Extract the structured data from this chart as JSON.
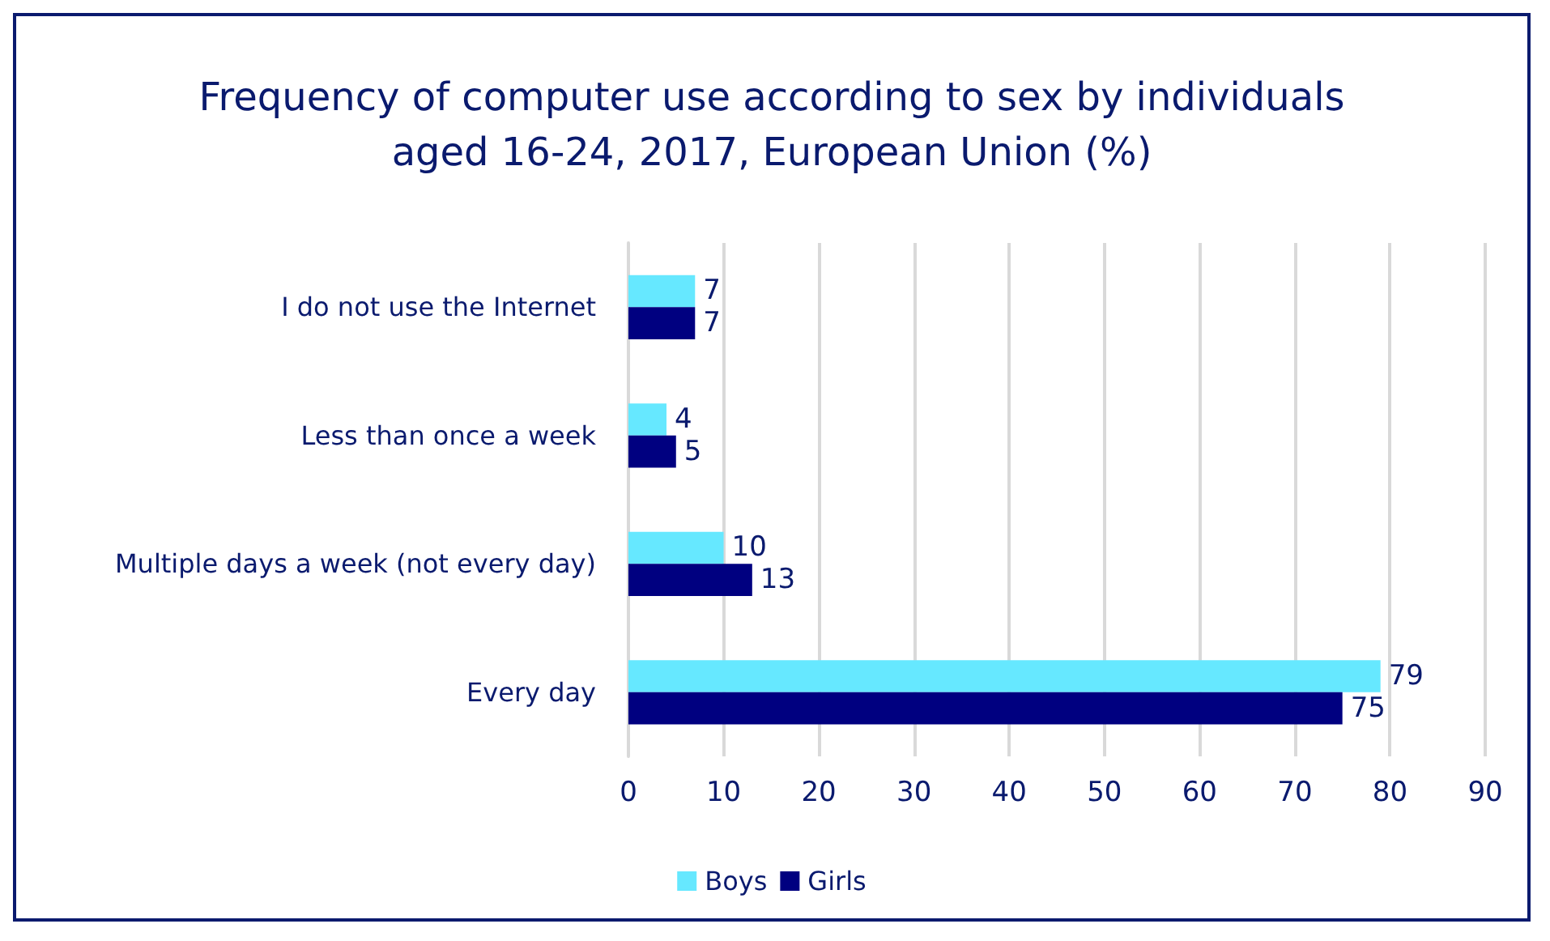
{
  "chart_data": {
    "type": "bar",
    "orientation": "horizontal",
    "title": "Frequency of computer use according to sex by individuals\naged 16-24, 2017, European Union (%)",
    "categories": [
      "I do not use the Internet",
      "Less than once a week",
      "Multiple days a week (not every day)",
      "Every day"
    ],
    "series": [
      {
        "name": "Boys",
        "color": "#66e8ff",
        "values": [
          7,
          4,
          10,
          79
        ]
      },
      {
        "name": "Girls",
        "color": "#000080",
        "values": [
          7,
          5,
          13,
          75
        ]
      }
    ],
    "xlim": [
      0,
      90
    ],
    "xticks": [
      0,
      10,
      20,
      30,
      40,
      50,
      60,
      70,
      80,
      90
    ],
    "grid": "x",
    "legend": "bottom",
    "data_labels": true
  }
}
